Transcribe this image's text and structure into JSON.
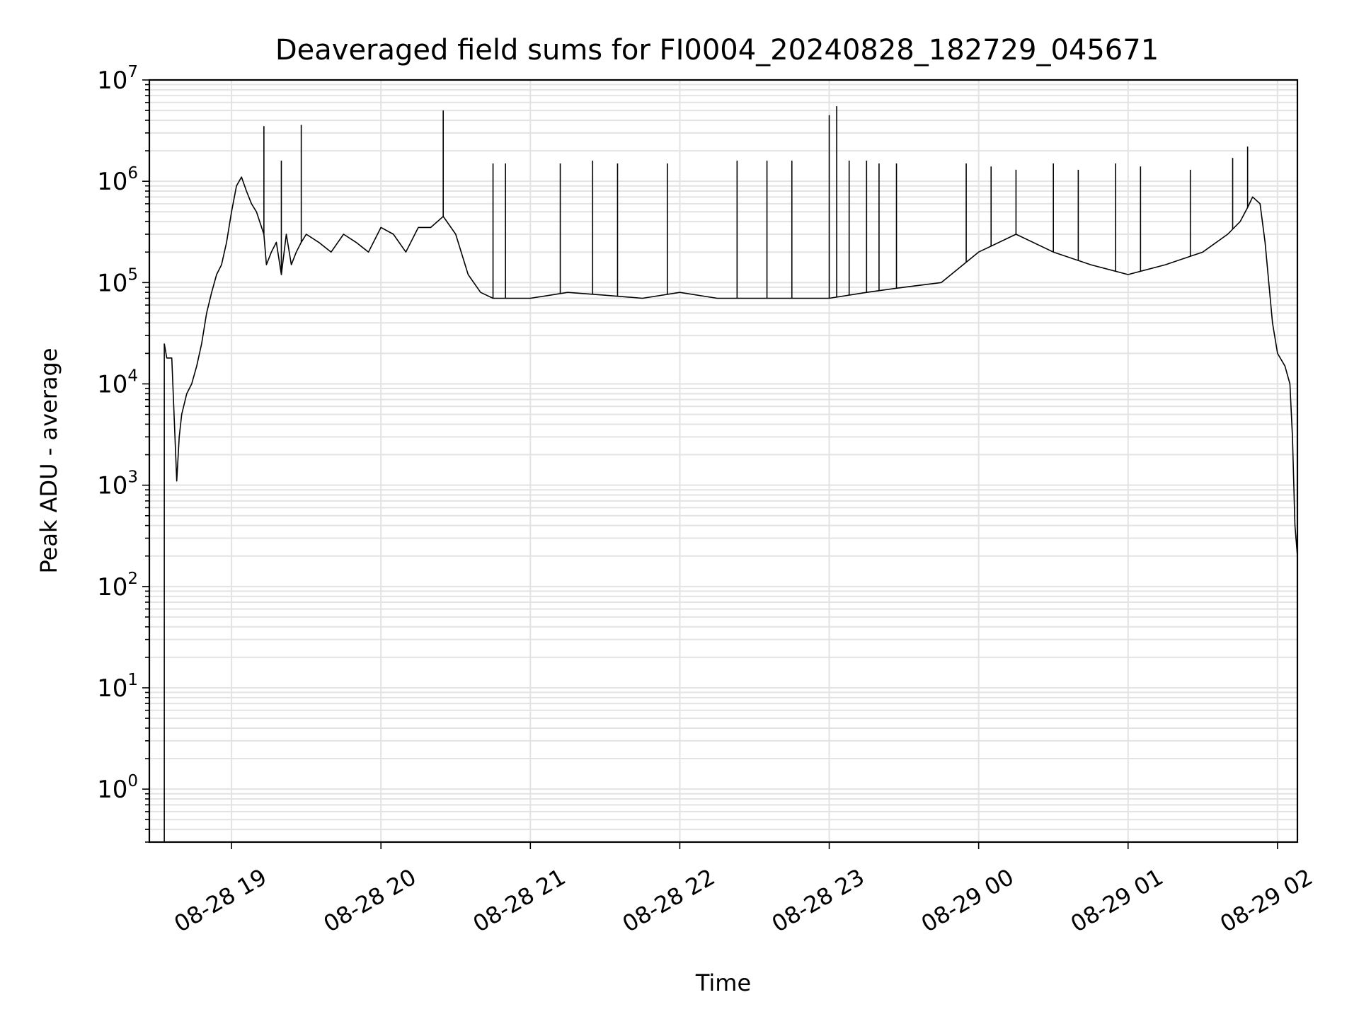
{
  "chart_data": {
    "type": "line",
    "title": "Deaveraged field sums for FI0004_20240828_182729_045671",
    "xlabel": "Time",
    "ylabel": "Peak ADU - average",
    "yscale": "log",
    "grid": "on (major and minor)",
    "legend": "none",
    "line_color": "#000000",
    "grid_color": "#e3e3e3",
    "xlim": [
      "2024-08-28 18:27",
      "2024-08-29 02:08"
    ],
    "ylim": [
      0.3,
      10000000
    ],
    "x_tick_labels": [
      "08-28 19",
      "08-28 20",
      "08-28 21",
      "08-28 22",
      "08-28 23",
      "08-29 00",
      "08-29 01",
      "08-29 02"
    ],
    "y_tick_labels": [
      {
        "base": "10",
        "exp": "0"
      },
      {
        "base": "10",
        "exp": "1"
      },
      {
        "base": "10",
        "exp": "2"
      },
      {
        "base": "10",
        "exp": "3"
      },
      {
        "base": "10",
        "exp": "4"
      },
      {
        "base": "10",
        "exp": "5"
      },
      {
        "base": "10",
        "exp": "6"
      },
      {
        "base": "10",
        "exp": "7"
      }
    ],
    "series": [
      {
        "x": [
          "2024-08-28 18:33",
          "2024-08-28 18:34",
          "2024-08-28 18:36",
          "2024-08-28 18:38",
          "2024-08-28 18:39",
          "2024-08-28 18:40",
          "2024-08-28 18:42",
          "2024-08-28 18:44",
          "2024-08-28 18:46",
          "2024-08-28 18:48",
          "2024-08-28 18:50",
          "2024-08-28 18:52",
          "2024-08-28 18:54",
          "2024-08-28 18:56",
          "2024-08-28 18:58",
          "2024-08-28 19:00",
          "2024-08-28 19:02",
          "2024-08-28 19:04",
          "2024-08-28 19:06",
          "2024-08-28 19:08",
          "2024-08-28 19:10",
          "2024-08-28 19:13",
          "2024-08-28 19:14",
          "2024-08-28 19:16",
          "2024-08-28 19:18",
          "2024-08-28 19:20",
          "2024-08-28 19:22",
          "2024-08-28 19:24",
          "2024-08-28 19:26",
          "2024-08-28 19:28",
          "2024-08-28 19:30",
          "2024-08-28 19:35",
          "2024-08-28 19:40",
          "2024-08-28 19:45",
          "2024-08-28 19:50",
          "2024-08-28 19:55",
          "2024-08-28 20:00",
          "2024-08-28 20:05",
          "2024-08-28 20:10",
          "2024-08-28 20:15",
          "2024-08-28 20:20",
          "2024-08-28 20:25",
          "2024-08-28 20:30",
          "2024-08-28 20:35",
          "2024-08-28 20:40",
          "2024-08-28 20:45",
          "2024-08-28 20:50",
          "2024-08-28 21:00",
          "2024-08-28 21:15",
          "2024-08-28 21:30",
          "2024-08-28 21:45",
          "2024-08-28 22:00",
          "2024-08-28 22:15",
          "2024-08-28 22:30",
          "2024-08-28 22:45",
          "2024-08-28 23:00",
          "2024-08-28 23:15",
          "2024-08-28 23:30",
          "2024-08-28 23:45",
          "2024-08-29 00:00",
          "2024-08-29 00:15",
          "2024-08-29 00:30",
          "2024-08-29 00:45",
          "2024-08-29 01:00",
          "2024-08-29 01:15",
          "2024-08-29 01:30",
          "2024-08-29 01:40",
          "2024-08-29 01:45",
          "2024-08-29 01:48",
          "2024-08-29 01:50",
          "2024-08-29 01:53",
          "2024-08-29 01:55",
          "2024-08-29 01:58",
          "2024-08-29 02:00",
          "2024-08-29 02:03",
          "2024-08-29 02:05",
          "2024-08-29 02:06",
          "2024-08-29 02:07",
          "2024-08-29 02:08"
        ],
        "y": [
          25000,
          18000,
          18000,
          1100,
          3000,
          5000,
          8000,
          10000,
          15000,
          25000,
          50000,
          80000,
          120000,
          150000,
          250000,
          500000,
          900000,
          1100000,
          800000,
          600000,
          500000,
          300000,
          150000,
          200000,
          250000,
          120000,
          300000,
          150000,
          200000,
          250000,
          300000,
          250000,
          200000,
          300000,
          250000,
          200000,
          350000,
          300000,
          200000,
          350000,
          350000,
          450000,
          300000,
          120000,
          80000,
          70000,
          70000,
          70000,
          80000,
          75000,
          70000,
          80000,
          70000,
          70000,
          70000,
          70000,
          80000,
          90000,
          100000,
          200000,
          300000,
          200000,
          150000,
          120000,
          150000,
          200000,
          300000,
          400000,
          550000,
          700000,
          600000,
          250000,
          40000,
          20000,
          15000,
          10000,
          3000,
          400,
          200
        ]
      }
    ],
    "spikes": [
      {
        "x": "2024-08-28 19:13",
        "y": 3500000
      },
      {
        "x": "2024-08-28 19:20",
        "y": 1600000
      },
      {
        "x": "2024-08-28 19:28",
        "y": 3600000
      },
      {
        "x": "2024-08-28 20:25",
        "y": 5000000
      },
      {
        "x": "2024-08-28 20:45",
        "y": 1500000
      },
      {
        "x": "2024-08-28 20:50",
        "y": 1500000
      },
      {
        "x": "2024-08-28 21:12",
        "y": 1500000
      },
      {
        "x": "2024-08-28 21:25",
        "y": 1600000
      },
      {
        "x": "2024-08-28 21:35",
        "y": 1500000
      },
      {
        "x": "2024-08-28 21:55",
        "y": 1500000
      },
      {
        "x": "2024-08-28 22:23",
        "y": 1600000
      },
      {
        "x": "2024-08-28 22:35",
        "y": 1600000
      },
      {
        "x": "2024-08-28 22:45",
        "y": 1600000
      },
      {
        "x": "2024-08-28 23:00",
        "y": 4500000
      },
      {
        "x": "2024-08-28 23:03",
        "y": 5500000
      },
      {
        "x": "2024-08-28 23:08",
        "y": 1600000
      },
      {
        "x": "2024-08-28 23:15",
        "y": 1600000
      },
      {
        "x": "2024-08-28 23:20",
        "y": 1500000
      },
      {
        "x": "2024-08-28 23:27",
        "y": 1500000
      },
      {
        "x": "2024-08-28 23:55",
        "y": 1500000
      },
      {
        "x": "2024-08-29 00:05",
        "y": 1400000
      },
      {
        "x": "2024-08-29 00:15",
        "y": 1300000
      },
      {
        "x": "2024-08-29 00:30",
        "y": 1500000
      },
      {
        "x": "2024-08-29 00:40",
        "y": 1300000
      },
      {
        "x": "2024-08-29 00:55",
        "y": 1500000
      },
      {
        "x": "2024-08-29 01:05",
        "y": 1400000
      },
      {
        "x": "2024-08-29 01:25",
        "y": 1300000
      },
      {
        "x": "2024-08-29 01:42",
        "y": 1700000
      },
      {
        "x": "2024-08-29 01:48",
        "y": 2200000
      }
    ]
  }
}
